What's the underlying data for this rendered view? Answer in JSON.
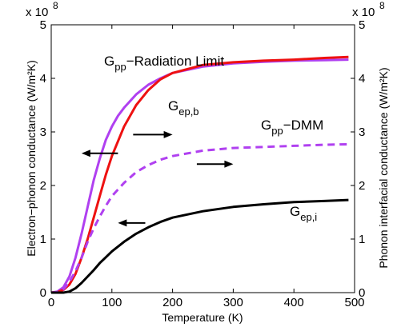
{
  "chart_data": {
    "type": "line",
    "xlabel": "Temperature (K)",
    "ylabel_left": "Electron−phonon conductance (W/m²K)",
    "ylabel_right": "Phonon interfacial conductance (W/m²K)",
    "y_multiplier_left": "x 10",
    "y_multiplier_right": "x 10",
    "y_multiplier_exp": "8",
    "xlim": [
      0,
      500
    ],
    "ylim": [
      0,
      5
    ],
    "xticks": [
      "0",
      "100",
      "200",
      "300",
      "400",
      "500"
    ],
    "yticks": [
      "0",
      "1",
      "2",
      "3",
      "4",
      "5"
    ],
    "series": [
      {
        "key": "gpp_rad",
        "color": "#b040f0",
        "dash": "solid",
        "x": [
          0,
          10,
          20,
          30,
          40,
          50,
          60,
          70,
          80,
          90,
          100,
          110,
          120,
          140,
          160,
          180,
          200,
          250,
          300,
          350,
          400,
          450,
          490
        ],
        "values": [
          0,
          0.02,
          0.1,
          0.3,
          0.65,
          1.1,
          1.6,
          2.1,
          2.5,
          2.85,
          3.1,
          3.3,
          3.45,
          3.7,
          3.88,
          4.0,
          4.1,
          4.22,
          4.28,
          4.31,
          4.33,
          4.34,
          4.35
        ]
      },
      {
        "key": "gep_b",
        "color": "#ee1111",
        "dash": "solid",
        "x": [
          0,
          10,
          20,
          30,
          40,
          50,
          60,
          70,
          80,
          90,
          100,
          120,
          140,
          160,
          180,
          200,
          250,
          300,
          350,
          400,
          450,
          490
        ],
        "values": [
          0,
          0.01,
          0.05,
          0.15,
          0.35,
          0.65,
          1.0,
          1.4,
          1.8,
          2.2,
          2.55,
          3.1,
          3.5,
          3.78,
          3.98,
          4.1,
          4.25,
          4.3,
          4.33,
          4.35,
          4.38,
          4.4
        ]
      },
      {
        "key": "gpp_dmm",
        "color": "#b040f0",
        "dash": "dashed",
        "x": [
          0,
          10,
          20,
          30,
          40,
          50,
          60,
          70,
          80,
          90,
          100,
          120,
          140,
          160,
          180,
          200,
          250,
          300,
          350,
          400,
          450,
          490
        ],
        "values": [
          0,
          0.01,
          0.06,
          0.2,
          0.4,
          0.65,
          0.95,
          1.2,
          1.42,
          1.62,
          1.8,
          2.05,
          2.25,
          2.38,
          2.48,
          2.55,
          2.65,
          2.7,
          2.72,
          2.74,
          2.76,
          2.77
        ]
      },
      {
        "key": "gep_i",
        "color": "#000000",
        "dash": "solid",
        "x": [
          0,
          20,
          30,
          40,
          50,
          60,
          70,
          80,
          90,
          100,
          120,
          140,
          160,
          180,
          200,
          250,
          300,
          350,
          400,
          450,
          490
        ],
        "values": [
          0,
          0.0,
          0.02,
          0.08,
          0.18,
          0.3,
          0.42,
          0.55,
          0.66,
          0.77,
          0.95,
          1.1,
          1.22,
          1.32,
          1.4,
          1.52,
          1.6,
          1.65,
          1.69,
          1.71,
          1.73
        ]
      }
    ],
    "annotations": [
      {
        "key": "rad",
        "main": "G",
        "sub": "pp",
        "rest": "−Radiation Limit"
      },
      {
        "key": "gepb",
        "main": "G",
        "sub": "ep,b",
        "rest": ""
      },
      {
        "key": "dmm",
        "main": "G",
        "sub": "pp",
        "rest": "−DMM"
      },
      {
        "key": "gepi",
        "main": "G",
        "sub": "ep,i",
        "rest": ""
      }
    ],
    "arrows": [
      {
        "key": "a1",
        "x1": 110,
        "y1": 2.6,
        "x2": 50,
        "y2": 2.6
      },
      {
        "key": "a2",
        "x1": 135,
        "y1": 2.95,
        "x2": 200,
        "y2": 2.95
      },
      {
        "key": "a3",
        "x1": 240,
        "y1": 2.4,
        "x2": 300,
        "y2": 2.4
      },
      {
        "key": "a4",
        "x1": 155,
        "y1": 1.3,
        "x2": 110,
        "y2": 1.3
      }
    ]
  }
}
